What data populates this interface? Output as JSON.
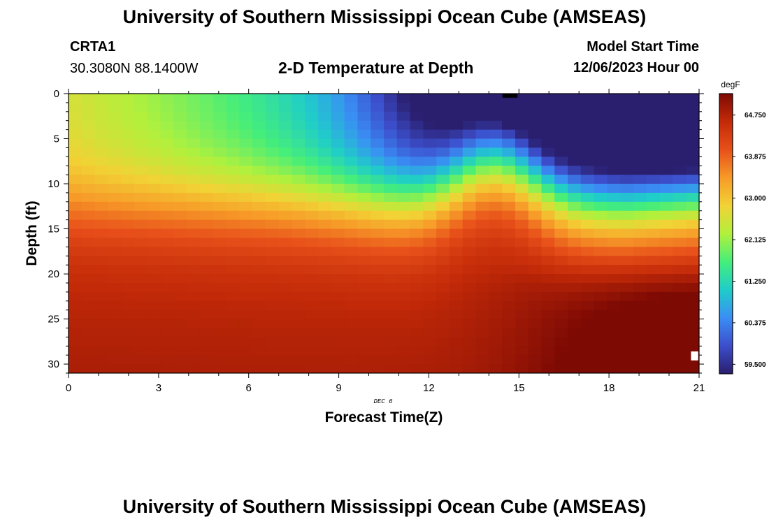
{
  "header": {
    "title": "University of Southern Mississippi Ocean Cube (AMSEAS)",
    "footer_title": "University of Southern Mississippi Ocean Cube (AMSEAS)",
    "station": "CRTA1",
    "coordinates": "30.3080N  88.1400W",
    "start_label": "Model Start Time",
    "start_value": "12/06/2023 Hour 00"
  },
  "chart_data": {
    "type": "heatmap",
    "title": "2-D Temperature at Depth",
    "xlabel": "Forecast Time(Z)",
    "ylabel": "Depth (ft)",
    "date_label": "DEC 6",
    "xlim": [
      0,
      21
    ],
    "ylim": [
      31,
      0
    ],
    "x_ticks": [
      "0",
      "3",
      "6",
      "9",
      "12",
      "15",
      "18",
      "21"
    ],
    "y_ticks": [
      "0",
      "5",
      "10",
      "15",
      "20",
      "25",
      "30"
    ],
    "colorbar": {
      "unit": "degF",
      "min": 59.3,
      "max": 65.2,
      "labels": [
        "64.750",
        "63.875",
        "63.000",
        "62.125",
        "61.250",
        "60.375",
        "59.500"
      ],
      "colors": [
        "#2a1e6e",
        "#3c4ecb",
        "#3a8ef5",
        "#1fcdc9",
        "#45ee7a",
        "#b2f03c",
        "#f2d235",
        "#f79a28",
        "#e8501a",
        "#c32a08",
        "#7e0a04"
      ]
    },
    "colors": {
      "missing": "#ffffff",
      "min_marker": "#000000"
    }
  }
}
